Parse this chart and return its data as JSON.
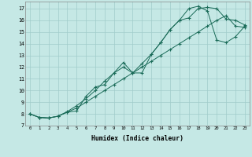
{
  "background_color": "#c5e8e5",
  "grid_color": "#a0ccca",
  "line_color": "#1a6b58",
  "xlabel": "Humidex (Indice chaleur)",
  "x_ticks": [
    0,
    1,
    2,
    3,
    4,
    5,
    6,
    7,
    8,
    9,
    10,
    11,
    12,
    13,
    14,
    15,
    16,
    17,
    18,
    19,
    20,
    21,
    22,
    23
  ],
  "y_ticks": [
    7,
    8,
    9,
    10,
    11,
    12,
    13,
    14,
    15,
    16,
    17
  ],
  "xlim": [
    -0.5,
    23.5
  ],
  "ylim": [
    7.0,
    17.6
  ],
  "line1_x": [
    0,
    1,
    2,
    3,
    4,
    5,
    6,
    7,
    8,
    9,
    10,
    11,
    12,
    13,
    14,
    15,
    16,
    17,
    18,
    19,
    20,
    21,
    22,
    23
  ],
  "line1_y": [
    8.0,
    7.7,
    7.65,
    7.8,
    8.2,
    8.7,
    9.3,
    10.0,
    10.8,
    11.5,
    12.0,
    11.5,
    11.5,
    13.1,
    14.1,
    15.2,
    16.0,
    16.2,
    17.0,
    17.1,
    17.0,
    16.1,
    16.0,
    15.6
  ],
  "line2_x": [
    0,
    1,
    2,
    3,
    4,
    5,
    6,
    7,
    8,
    9,
    10,
    11,
    12,
    13,
    14,
    15,
    16,
    17,
    18,
    19,
    20,
    21,
    22,
    23
  ],
  "line2_y": [
    8.0,
    7.7,
    7.65,
    7.8,
    8.15,
    8.25,
    9.5,
    10.3,
    10.5,
    11.5,
    12.4,
    11.5,
    12.3,
    13.1,
    14.1,
    15.2,
    16.0,
    17.0,
    17.2,
    16.8,
    14.3,
    14.1,
    14.6,
    15.5
  ],
  "line3_x": [
    0,
    1,
    2,
    3,
    4,
    5,
    6,
    7,
    8,
    9,
    10,
    11,
    12,
    13,
    14,
    15,
    16,
    17,
    18,
    19,
    20,
    21,
    22,
    23
  ],
  "line3_y": [
    8.0,
    7.7,
    7.65,
    7.8,
    8.15,
    8.5,
    9.0,
    9.5,
    10.0,
    10.5,
    11.0,
    11.5,
    12.0,
    12.5,
    13.0,
    13.5,
    14.0,
    14.5,
    15.0,
    15.5,
    16.0,
    16.4,
    15.5,
    15.4
  ]
}
